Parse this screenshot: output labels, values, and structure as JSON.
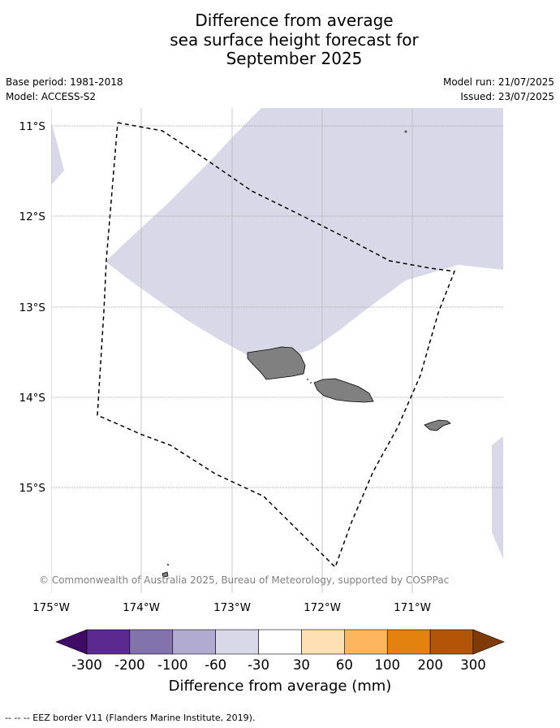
{
  "title_lines": [
    "Difference from average",
    "sea surface height forecast for",
    "September 2025"
  ],
  "meta": {
    "base_period": "Base period: 1981-2018",
    "model": "Model: ACCESS-S2",
    "model_run": "Model run: 21/07/2025",
    "issued": "Issued: 23/07/2025"
  },
  "map": {
    "lat_ticks": [
      "11°S",
      "12°S",
      "13°S",
      "14°S",
      "15°S"
    ],
    "lon_ticks": [
      "175°W",
      "174°W",
      "173°W",
      "172°W",
      "171°W"
    ],
    "copyright": "© Commonwealth of Australia 2025, Bureau of Meteorology, supported by COSPPac",
    "ocean_color": "#d8d8e9",
    "land_color": "#808080"
  },
  "colorbar": {
    "title": "Difference from average (mm)",
    "labels": [
      "-300",
      "-200",
      "-100",
      "-60",
      "-30",
      "30",
      "60",
      "100",
      "200",
      "300"
    ],
    "colors": [
      "#3f0b66",
      "#5b2990",
      "#8273ad",
      "#b1abd2",
      "#d8d8e9",
      "#ffffff",
      "#fee0b4",
      "#fcb75e",
      "#e3820f",
      "#b25506",
      "#7f3b07"
    ]
  },
  "legend": "--  --  -- EEZ border V11 (Flanders Marine Institute, 2019)."
}
